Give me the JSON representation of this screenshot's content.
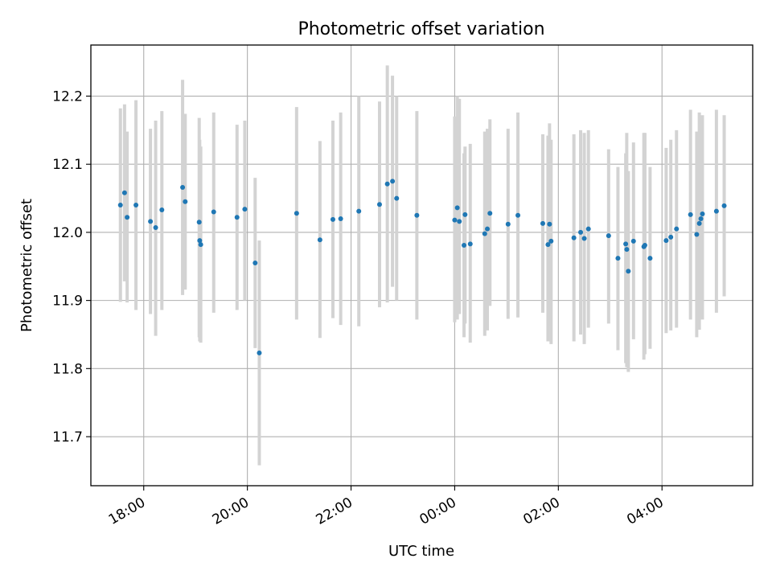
{
  "chart_data": {
    "type": "scatter",
    "title": "Photometric offset variation",
    "xlabel": "UTC time",
    "ylabel": "Photometric offset",
    "x_unit": "hours",
    "x_ticks": [
      {
        "x": 18,
        "label": "18:00"
      },
      {
        "x": 20,
        "label": "20:00"
      },
      {
        "x": 22,
        "label": "22:00"
      },
      {
        "x": 24,
        "label": "00:00"
      },
      {
        "x": 26,
        "label": "02:00"
      },
      {
        "x": 28,
        "label": "04:00"
      }
    ],
    "y_ticks": [
      {
        "y": 11.7,
        "label": "11.7"
      },
      {
        "y": 11.8,
        "label": "11.8"
      },
      {
        "y": 11.9,
        "label": "11.9"
      },
      {
        "y": 12.0,
        "label": "12.0"
      },
      {
        "y": 12.1,
        "label": "12.1"
      },
      {
        "y": 12.2,
        "label": "12.2"
      }
    ],
    "xlim": [
      16.98,
      29.75
    ],
    "ylim": [
      11.628,
      12.275
    ],
    "grid": true,
    "colors": {
      "point": "#1f77b4",
      "errorbar": "#d3d3d3",
      "grid": "#b0b0b0"
    },
    "points": [
      {
        "x": 17.55,
        "y": 12.04,
        "lo": 11.898,
        "hi": 12.182
      },
      {
        "x": 17.63,
        "y": 12.058,
        "lo": 11.928,
        "hi": 12.188
      },
      {
        "x": 17.68,
        "y": 12.022,
        "lo": 11.897,
        "hi": 12.148
      },
      {
        "x": 17.85,
        "y": 12.04,
        "lo": 11.886,
        "hi": 12.194
      },
      {
        "x": 18.13,
        "y": 12.016,
        "lo": 11.88,
        "hi": 12.152
      },
      {
        "x": 18.23,
        "y": 12.007,
        "lo": 11.848,
        "hi": 12.164
      },
      {
        "x": 18.35,
        "y": 12.033,
        "lo": 11.886,
        "hi": 12.178
      },
      {
        "x": 18.75,
        "y": 12.066,
        "lo": 11.908,
        "hi": 12.224
      },
      {
        "x": 18.8,
        "y": 12.045,
        "lo": 11.916,
        "hi": 12.174
      },
      {
        "x": 19.07,
        "y": 12.015,
        "lo": 11.846,
        "hi": 12.168
      },
      {
        "x": 19.08,
        "y": 11.988,
        "lo": 11.84,
        "hi": 12.136
      },
      {
        "x": 19.1,
        "y": 11.982,
        "lo": 11.838,
        "hi": 12.126
      },
      {
        "x": 19.35,
        "y": 12.03,
        "lo": 11.882,
        "hi": 12.176
      },
      {
        "x": 19.8,
        "y": 12.022,
        "lo": 11.886,
        "hi": 12.158
      },
      {
        "x": 19.95,
        "y": 12.034,
        "lo": 11.9,
        "hi": 12.164
      },
      {
        "x": 20.15,
        "y": 11.955,
        "lo": 11.83,
        "hi": 12.08
      },
      {
        "x": 20.23,
        "y": 11.823,
        "lo": 11.658,
        "hi": 11.988
      },
      {
        "x": 20.95,
        "y": 12.028,
        "lo": 11.872,
        "hi": 12.184
      },
      {
        "x": 21.4,
        "y": 11.989,
        "lo": 11.845,
        "hi": 12.134
      },
      {
        "x": 21.65,
        "y": 12.019,
        "lo": 11.874,
        "hi": 12.164
      },
      {
        "x": 21.8,
        "y": 12.02,
        "lo": 11.864,
        "hi": 12.176
      },
      {
        "x": 22.15,
        "y": 12.031,
        "lo": 11.862,
        "hi": 12.2
      },
      {
        "x": 22.55,
        "y": 12.041,
        "lo": 11.89,
        "hi": 12.192
      },
      {
        "x": 22.7,
        "y": 12.071,
        "lo": 11.897,
        "hi": 12.245
      },
      {
        "x": 22.8,
        "y": 12.075,
        "lo": 11.92,
        "hi": 12.23
      },
      {
        "x": 22.88,
        "y": 12.05,
        "lo": 11.9,
        "hi": 12.2
      },
      {
        "x": 23.27,
        "y": 12.025,
        "lo": 11.872,
        "hi": 12.178
      },
      {
        "x": 24.0,
        "y": 12.018,
        "lo": 11.868,
        "hi": 12.17
      },
      {
        "x": 24.05,
        "y": 12.036,
        "lo": 11.872,
        "hi": 12.2
      },
      {
        "x": 24.09,
        "y": 12.016,
        "lo": 11.88,
        "hi": 12.196
      },
      {
        "x": 24.18,
        "y": 11.981,
        "lo": 11.846,
        "hi": 12.116
      },
      {
        "x": 24.2,
        "y": 12.026,
        "lo": 11.866,
        "hi": 12.126
      },
      {
        "x": 24.3,
        "y": 11.983,
        "lo": 11.838,
        "hi": 12.13
      },
      {
        "x": 24.58,
        "y": 11.998,
        "lo": 11.848,
        "hi": 12.148
      },
      {
        "x": 24.63,
        "y": 12.005,
        "lo": 11.856,
        "hi": 12.152
      },
      {
        "x": 24.68,
        "y": 12.028,
        "lo": 11.892,
        "hi": 12.166
      },
      {
        "x": 25.03,
        "y": 12.012,
        "lo": 11.873,
        "hi": 12.152
      },
      {
        "x": 25.22,
        "y": 12.025,
        "lo": 11.875,
        "hi": 12.176
      },
      {
        "x": 25.7,
        "y": 12.013,
        "lo": 11.882,
        "hi": 12.144
      },
      {
        "x": 25.8,
        "y": 11.982,
        "lo": 11.84,
        "hi": 12.142
      },
      {
        "x": 25.83,
        "y": 12.012,
        "lo": 11.862,
        "hi": 12.16
      },
      {
        "x": 25.86,
        "y": 11.987,
        "lo": 11.836,
        "hi": 12.136
      },
      {
        "x": 26.3,
        "y": 11.992,
        "lo": 11.84,
        "hi": 12.144
      },
      {
        "x": 26.43,
        "y": 12.0,
        "lo": 11.85,
        "hi": 12.15
      },
      {
        "x": 26.5,
        "y": 11.991,
        "lo": 11.836,
        "hi": 12.146
      },
      {
        "x": 26.58,
        "y": 12.005,
        "lo": 11.86,
        "hi": 12.15
      },
      {
        "x": 26.97,
        "y": 11.995,
        "lo": 11.866,
        "hi": 12.122
      },
      {
        "x": 27.15,
        "y": 11.962,
        "lo": 11.827,
        "hi": 12.096
      },
      {
        "x": 27.3,
        "y": 11.983,
        "lo": 11.808,
        "hi": 12.116
      },
      {
        "x": 27.32,
        "y": 11.975,
        "lo": 11.802,
        "hi": 12.146
      },
      {
        "x": 27.35,
        "y": 11.943,
        "lo": 11.795,
        "hi": 12.09
      },
      {
        "x": 27.45,
        "y": 11.987,
        "lo": 11.843,
        "hi": 12.132
      },
      {
        "x": 27.65,
        "y": 11.979,
        "lo": 11.813,
        "hi": 12.146
      },
      {
        "x": 27.67,
        "y": 11.981,
        "lo": 11.821,
        "hi": 12.146
      },
      {
        "x": 27.77,
        "y": 11.962,
        "lo": 11.829,
        "hi": 12.096
      },
      {
        "x": 28.08,
        "y": 11.988,
        "lo": 11.852,
        "hi": 12.124
      },
      {
        "x": 28.17,
        "y": 11.993,
        "lo": 11.856,
        "hi": 12.136
      },
      {
        "x": 28.28,
        "y": 12.005,
        "lo": 11.86,
        "hi": 12.15
      },
      {
        "x": 28.55,
        "y": 12.026,
        "lo": 11.872,
        "hi": 12.18
      },
      {
        "x": 28.67,
        "y": 11.997,
        "lo": 11.846,
        "hi": 12.148
      },
      {
        "x": 28.72,
        "y": 12.013,
        "lo": 11.857,
        "hi": 12.176
      },
      {
        "x": 28.75,
        "y": 12.02,
        "lo": 11.873,
        "hi": 12.168
      },
      {
        "x": 28.78,
        "y": 12.027,
        "lo": 11.872,
        "hi": 12.172
      },
      {
        "x": 29.05,
        "y": 12.031,
        "lo": 11.882,
        "hi": 12.18
      },
      {
        "x": 29.2,
        "y": 12.039,
        "lo": 11.906,
        "hi": 12.172
      }
    ]
  }
}
